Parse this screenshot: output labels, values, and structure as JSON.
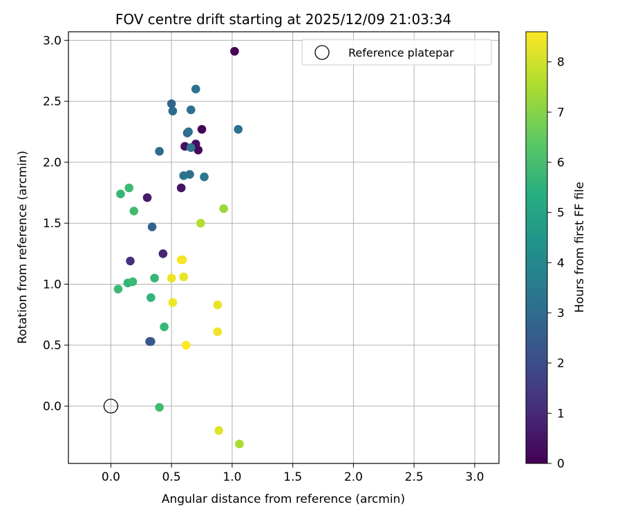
{
  "chart_data": {
    "type": "scatter",
    "title": "FOV centre drift starting at 2025/12/09 21:03:34",
    "xlabel": "Angular distance from reference (arcmin)",
    "ylabel": "Rotation from reference (arcmin)",
    "xlim": [
      -0.35,
      3.2
    ],
    "ylim": [
      -0.47,
      3.07
    ],
    "xticks": [
      "0.0",
      "0.5",
      "1.0",
      "1.5",
      "2.0",
      "2.5",
      "3.0"
    ],
    "yticks": [
      "0.0",
      "0.5",
      "1.0",
      "1.5",
      "2.0",
      "2.5",
      "3.0"
    ],
    "grid": true,
    "legend": {
      "label": "Reference platepar",
      "location": "upper right"
    },
    "reference_point": {
      "x": 0.0,
      "y": 0.0
    },
    "colorbar": {
      "label": "Hours from first FF file",
      "range": [
        0,
        8.6
      ],
      "ticks": [
        "0",
        "1",
        "2",
        "3",
        "4",
        "5",
        "6",
        "7",
        "8"
      ],
      "colormap": "viridis"
    },
    "points": [
      {
        "x": 1.02,
        "y": 2.91,
        "hours": 0.1
      },
      {
        "x": 0.75,
        "y": 2.27,
        "hours": 0.1
      },
      {
        "x": 0.7,
        "y": 2.15,
        "hours": 0.3
      },
      {
        "x": 0.72,
        "y": 2.1,
        "hours": 0.2
      },
      {
        "x": 0.61,
        "y": 2.13,
        "hours": 0.4
      },
      {
        "x": 0.58,
        "y": 1.79,
        "hours": 0.5
      },
      {
        "x": 0.3,
        "y": 1.71,
        "hours": 0.6
      },
      {
        "x": 0.43,
        "y": 1.25,
        "hours": 0.9
      },
      {
        "x": 0.16,
        "y": 1.19,
        "hours": 1.2
      },
      {
        "x": 0.32,
        "y": 0.53,
        "hours": 2.0
      },
      {
        "x": 0.33,
        "y": 0.53,
        "hours": 2.4
      },
      {
        "x": 0.34,
        "y": 1.47,
        "hours": 2.7
      },
      {
        "x": 0.5,
        "y": 2.48,
        "hours": 2.8
      },
      {
        "x": 0.51,
        "y": 2.42,
        "hours": 3.0
      },
      {
        "x": 0.4,
        "y": 2.09,
        "hours": 3.0
      },
      {
        "x": 0.7,
        "y": 2.6,
        "hours": 3.2
      },
      {
        "x": 0.66,
        "y": 2.43,
        "hours": 3.2
      },
      {
        "x": 0.63,
        "y": 2.24,
        "hours": 2.9
      },
      {
        "x": 0.64,
        "y": 2.25,
        "hours": 3.1
      },
      {
        "x": 0.66,
        "y": 2.12,
        "hours": 3.4
      },
      {
        "x": 0.6,
        "y": 1.89,
        "hours": 3.3
      },
      {
        "x": 0.65,
        "y": 1.9,
        "hours": 3.2
      },
      {
        "x": 0.77,
        "y": 1.88,
        "hours": 3.4
      },
      {
        "x": 1.05,
        "y": 2.27,
        "hours": 3.2
      },
      {
        "x": 0.15,
        "y": 1.79,
        "hours": 5.8
      },
      {
        "x": 0.08,
        "y": 1.74,
        "hours": 5.7
      },
      {
        "x": 0.19,
        "y": 1.6,
        "hours": 5.9
      },
      {
        "x": 0.36,
        "y": 1.05,
        "hours": 5.7
      },
      {
        "x": 0.14,
        "y": 1.01,
        "hours": 5.6
      },
      {
        "x": 0.18,
        "y": 1.02,
        "hours": 5.8
      },
      {
        "x": 0.06,
        "y": 0.96,
        "hours": 5.8
      },
      {
        "x": 0.33,
        "y": 0.89,
        "hours": 5.6
      },
      {
        "x": 0.44,
        "y": 0.65,
        "hours": 5.7
      },
      {
        "x": 0.4,
        "y": -0.01,
        "hours": 5.9
      },
      {
        "x": 0.93,
        "y": 1.62,
        "hours": 7.3
      },
      {
        "x": 0.74,
        "y": 1.5,
        "hours": 7.6
      },
      {
        "x": 1.06,
        "y": -0.31,
        "hours": 7.5
      },
      {
        "x": 0.59,
        "y": 1.2,
        "hours": 8.4
      },
      {
        "x": 0.58,
        "y": 1.2,
        "hours": 8.5
      },
      {
        "x": 0.6,
        "y": 1.06,
        "hours": 8.3
      },
      {
        "x": 0.5,
        "y": 1.05,
        "hours": 8.4
      },
      {
        "x": 0.51,
        "y": 0.85,
        "hours": 8.4
      },
      {
        "x": 0.88,
        "y": 0.83,
        "hours": 8.3
      },
      {
        "x": 0.88,
        "y": 0.61,
        "hours": 8.4
      },
      {
        "x": 0.62,
        "y": 0.5,
        "hours": 8.6
      },
      {
        "x": 0.89,
        "y": -0.2,
        "hours": 8.2
      }
    ]
  }
}
